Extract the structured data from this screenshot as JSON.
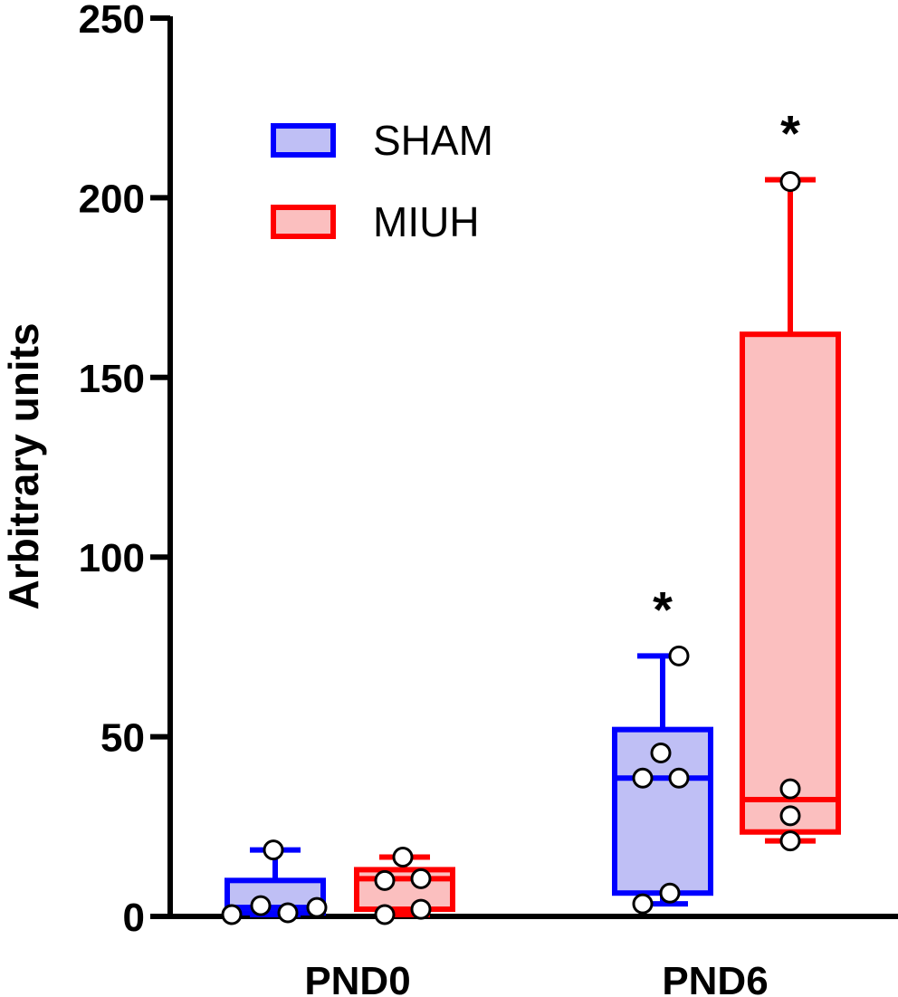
{
  "chart_data": {
    "type": "box",
    "ylabel": "Arbitrary units",
    "ylim": [
      0,
      250
    ],
    "yticks": [
      0,
      50,
      100,
      150,
      200,
      250
    ],
    "categories": [
      "PND0",
      "PND6"
    ],
    "series": [
      {
        "name": "SHAM",
        "color": "#0000ff",
        "fill": "#bfbff5",
        "boxes": [
          {
            "category": "PND0",
            "min": 0.5,
            "q1": 1,
            "median": 2.5,
            "q3": 10,
            "max": 18.5,
            "points": [
              0.5,
              3,
              1,
              2.5,
              18.5
            ]
          },
          {
            "category": "PND6",
            "min": 3.5,
            "q1": 6.5,
            "median": 38.5,
            "q3": 52,
            "max": 72.5,
            "points": [
              3.5,
              6.5,
              38.5,
              38.5,
              45.5,
              72.5
            ],
            "significance": "*"
          }
        ]
      },
      {
        "name": "MIUH",
        "color": "#ff0000",
        "fill": "#fbbfbf",
        "boxes": [
          {
            "category": "PND0",
            "min": 0.5,
            "q1": 2,
            "median": 10.5,
            "q3": 13,
            "max": 16.5,
            "points": [
              0.5,
              2,
              10,
              10.5,
              16.5
            ]
          },
          {
            "category": "PND6",
            "min": 21,
            "q1": 23.5,
            "median": 32.5,
            "q3": 162,
            "max": 205,
            "points": [
              21,
              28,
              35.5,
              204.5
            ],
            "significance": "*"
          }
        ]
      }
    ],
    "legend": {
      "position": "top-left",
      "entries": [
        "SHAM",
        "MIUH"
      ]
    }
  }
}
